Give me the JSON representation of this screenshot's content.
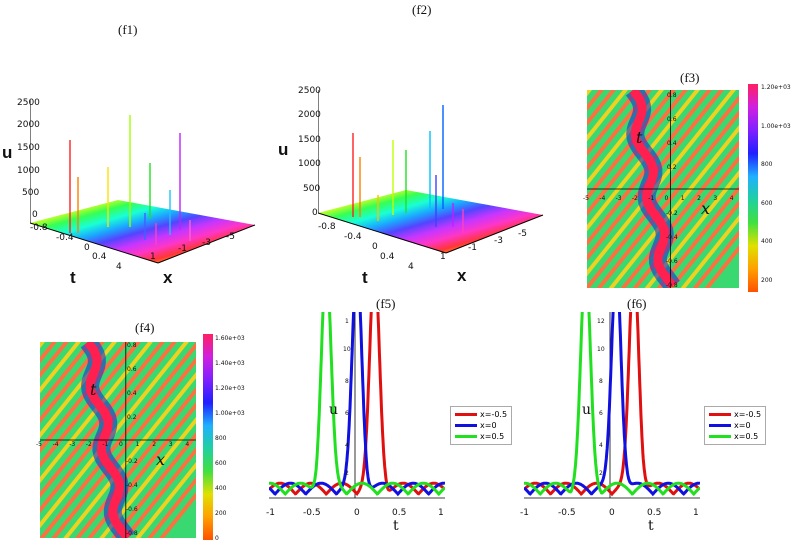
{
  "panels": {
    "f1": {
      "label": "(f1)"
    },
    "f2": {
      "label": "(f2)"
    },
    "f3": {
      "label": "(f3)"
    },
    "f4": {
      "label": "(f4)"
    },
    "f5": {
      "label": "(f5)"
    },
    "f6": {
      "label": "(f6)"
    }
  },
  "chart_data": [
    {
      "id": "f1",
      "type": "surface3d",
      "title": "(f1)",
      "zlabel": "u",
      "xlabel": "x",
      "ylabel": "t",
      "z_ticks": [
        "2500",
        "2000",
        "1500",
        "1000",
        "500",
        "0"
      ],
      "t_ticks": [
        "-0.8",
        "-0.4",
        "0",
        "0.4"
      ],
      "x_ticks": [
        "4",
        "1",
        "-1",
        "-3",
        "-5"
      ]
    },
    {
      "id": "f2",
      "type": "surface3d",
      "title": "(f2)",
      "zlabel": "u",
      "xlabel": "x",
      "ylabel": "t",
      "z_ticks": [
        "2500",
        "2000",
        "1500",
        "1000",
        "500",
        "0"
      ],
      "t_ticks": [
        "-0.8",
        "-0.4",
        "0",
        "0.4"
      ],
      "x_ticks": [
        "4",
        "1",
        "-1",
        "-3",
        "-5"
      ]
    },
    {
      "id": "f3",
      "type": "heatmap",
      "title": "(f3)",
      "xlabel": "x",
      "ylabel": "t",
      "x_ticks": [
        "-5",
        "-4",
        "-3",
        "-2",
        "-1",
        "0",
        "1",
        "2",
        "3",
        "4"
      ],
      "t_ticks": [
        "0.8",
        "0.6",
        "0.4",
        "0.2",
        "-0.2",
        "-0.4",
        "-0.6",
        "-0.8"
      ],
      "colorbar_ticks": [
        "1.20e+03",
        "1.00e+03",
        "800",
        "600",
        "400",
        "200"
      ],
      "colorbar_range": [
        0,
        1250
      ]
    },
    {
      "id": "f4",
      "type": "heatmap",
      "title": "(f4)",
      "xlabel": "x",
      "ylabel": "t",
      "x_ticks": [
        "-5",
        "-4",
        "-3",
        "-2",
        "-1",
        "0",
        "1",
        "2",
        "3",
        "4"
      ],
      "t_ticks": [
        "0.8",
        "0.6",
        "0.4",
        "0.2",
        "-0.2",
        "-0.4",
        "-0.6",
        "-0.8"
      ],
      "colorbar_ticks": [
        "1.60e+03",
        "1.40e+03",
        "1.20e+03",
        "1.00e+03",
        "800",
        "600",
        "400",
        "200",
        "0"
      ],
      "colorbar_range": [
        0,
        1650
      ]
    },
    {
      "id": "f5",
      "type": "line",
      "title": "(f5)",
      "xlabel": "t",
      "ylabel": "u",
      "x_ticks": [
        "-1",
        "-0.5",
        "0",
        "0.5",
        "1"
      ],
      "xlim": [
        -1,
        1
      ],
      "y_ticks": [
        "1",
        "10",
        "8",
        "6",
        "4",
        "2"
      ],
      "series": [
        {
          "name": "x=-0.5",
          "color": "#e01010",
          "peak_t": 0.2
        },
        {
          "name": "x=0",
          "color": "#1010e0",
          "peak_t": 0.0
        },
        {
          "name": "x=0.5",
          "color": "#20e020",
          "peak_t": -0.35
        }
      ]
    },
    {
      "id": "f6",
      "type": "line",
      "title": "(f6)",
      "xlabel": "t",
      "ylabel": "u",
      "x_ticks": [
        "-1",
        "-0.5",
        "0",
        "0.5",
        "1"
      ],
      "xlim": [
        -1,
        1
      ],
      "y_ticks": [
        "12",
        "10",
        "8",
        "6",
        "4",
        "2"
      ],
      "series": [
        {
          "name": "x=-0.5",
          "color": "#e01010",
          "peak_t": 0.25
        },
        {
          "name": "x=0",
          "color": "#1010e0",
          "peak_t": 0.05
        },
        {
          "name": "x=0.5",
          "color": "#20e020",
          "peak_t": -0.3
        }
      ]
    }
  ]
}
